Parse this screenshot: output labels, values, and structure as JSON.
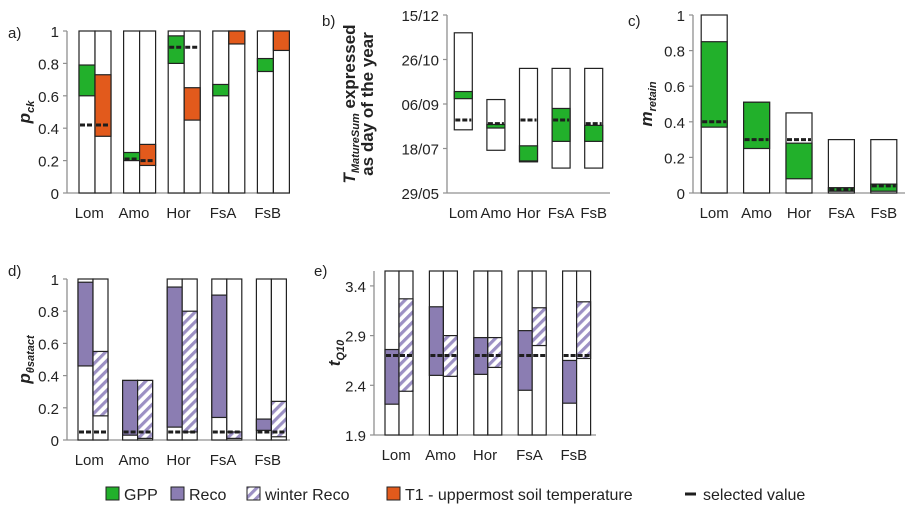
{
  "colors": {
    "gpp": "#22b02b",
    "reco": "#8b7db2",
    "winter_reco_stripe": "#9c90c4",
    "t1": "#e25a1c",
    "selected": "#1e1e1e",
    "axis": "#909090",
    "box": "#222222"
  },
  "legend": {
    "items": [
      {
        "key": "gpp",
        "label": "GPP"
      },
      {
        "key": "reco",
        "label": "Reco"
      },
      {
        "key": "winter_reco",
        "label": "winter Reco"
      },
      {
        "key": "t1",
        "label": "T1 - uppermost soil temperature"
      },
      {
        "key": "selected",
        "label": "selected value"
      }
    ]
  },
  "chart_data": [
    {
      "id": "a",
      "panel_label": "a)",
      "type": "bar",
      "ylabel_main": "p",
      "ylabel_sub": "ck",
      "ylim": [
        0,
        1
      ],
      "yticks": [
        {
          "v": 0,
          "label": "0"
        },
        {
          "v": 0.2,
          "label": "0.2"
        },
        {
          "v": 0.4,
          "label": "0.4"
        },
        {
          "v": 0.6,
          "label": "0.6"
        },
        {
          "v": 0.8,
          "label": "0.8"
        },
        {
          "v": 1,
          "label": "1"
        }
      ],
      "categories": [
        "Lom",
        "Amo",
        "Hor",
        "FsA",
        "FsB"
      ],
      "bars": [
        {
          "cat": "Lom",
          "kind": "gpp",
          "range": [
            0,
            1
          ],
          "band": [
            0.6,
            0.79
          ],
          "selected": 0.42
        },
        {
          "cat": "Lom",
          "kind": "t1",
          "range": [
            0,
            1
          ],
          "band": [
            0.35,
            0.73
          ],
          "selected": 0.42
        },
        {
          "cat": "Amo",
          "kind": "gpp",
          "range": [
            0,
            1
          ],
          "band": [
            0.2,
            0.25
          ],
          "selected": 0.21
        },
        {
          "cat": "Amo",
          "kind": "t1",
          "range": [
            0,
            1
          ],
          "band": [
            0.17,
            0.3
          ],
          "selected": 0.2
        },
        {
          "cat": "Hor",
          "kind": "gpp",
          "range": [
            0,
            1
          ],
          "band": [
            0.8,
            0.97
          ],
          "selected": 0.9
        },
        {
          "cat": "Hor",
          "kind": "t1",
          "range": [
            0,
            1
          ],
          "band": [
            0.45,
            0.65
          ],
          "selected": 0.9
        },
        {
          "cat": "FsA",
          "kind": "gpp",
          "range": [
            0,
            1
          ],
          "band": [
            0.6,
            0.67
          ],
          "selected": null
        },
        {
          "cat": "FsA",
          "kind": "t1",
          "range": [
            0,
            1
          ],
          "band": [
            0.92,
            1.0
          ],
          "selected": null
        },
        {
          "cat": "FsB",
          "kind": "gpp",
          "range": [
            0,
            1
          ],
          "band": [
            0.75,
            0.83
          ],
          "selected": null
        },
        {
          "cat": "FsB",
          "kind": "t1",
          "range": [
            0,
            1
          ],
          "band": [
            0.88,
            1.0
          ],
          "selected": null
        }
      ]
    },
    {
      "id": "b",
      "panel_label": "b)",
      "type": "bar",
      "ylabel_main": "T",
      "ylabel_sub": "MatureSum",
      "ylabel_rest": " expressed",
      "ylabel_line2": "as day of the year",
      "ylim": [
        149,
        349
      ],
      "yticks": [
        {
          "v": 149,
          "label": "29/05"
        },
        {
          "v": 199,
          "label": "18/07"
        },
        {
          "v": 249,
          "label": "06/09"
        },
        {
          "v": 299,
          "label": "26/10"
        },
        {
          "v": 349,
          "label": "15/12"
        }
      ],
      "categories": [
        "Lom",
        "Amo",
        "Hor",
        "FsA",
        "FsB"
      ],
      "bars": [
        {
          "cat": "Lom",
          "kind": "gpp",
          "range": [
            220,
            329
          ],
          "band": [
            255,
            263
          ],
          "selected": 231
        },
        {
          "cat": "Amo",
          "kind": "gpp",
          "range": [
            197,
            254
          ],
          "band": [
            222,
            226
          ],
          "selected": 227
        },
        {
          "cat": "Hor",
          "kind": "gpp",
          "range": [
            184,
            289
          ],
          "band": [
            185,
            202
          ],
          "selected": 231
        },
        {
          "cat": "FsA",
          "kind": "gpp",
          "range": [
            177,
            289
          ],
          "band": [
            207,
            244
          ],
          "selected": 231
        },
        {
          "cat": "FsB",
          "kind": "gpp",
          "range": [
            177,
            289
          ],
          "band": [
            207,
            225
          ],
          "selected": 227
        }
      ]
    },
    {
      "id": "c",
      "panel_label": "c)",
      "type": "bar",
      "ylabel_main": "m",
      "ylabel_sub": "retain",
      "ylim": [
        0,
        1
      ],
      "yticks": [
        {
          "v": 0,
          "label": "0"
        },
        {
          "v": 0.2,
          "label": "0.2"
        },
        {
          "v": 0.4,
          "label": "0.4"
        },
        {
          "v": 0.6,
          "label": "0.6"
        },
        {
          "v": 0.8,
          "label": "0.8"
        },
        {
          "v": 1,
          "label": "1"
        }
      ],
      "categories": [
        "Lom",
        "Amo",
        "Hor",
        "FsA",
        "FsB"
      ],
      "bars": [
        {
          "cat": "Lom",
          "kind": "gpp",
          "range": [
            0,
            1
          ],
          "band": [
            0.37,
            0.85
          ],
          "selected": 0.4
        },
        {
          "cat": "Amo",
          "kind": "gpp",
          "range": [
            0,
            0.51
          ],
          "band": [
            0.25,
            0.51
          ],
          "selected": 0.3
        },
        {
          "cat": "Hor",
          "kind": "gpp",
          "range": [
            0,
            0.45
          ],
          "band": [
            0.08,
            0.28
          ],
          "selected": 0.3
        },
        {
          "cat": "FsA",
          "kind": "gpp",
          "range": [
            0,
            0.3
          ],
          "band": [
            0.01,
            0.03
          ],
          "selected": 0.02
        },
        {
          "cat": "FsB",
          "kind": "gpp",
          "range": [
            0,
            0.3
          ],
          "band": [
            0.01,
            0.05
          ],
          "selected": 0.04
        }
      ]
    },
    {
      "id": "d",
      "panel_label": "d)",
      "type": "bar",
      "ylabel_main": "p",
      "ylabel_sub": "θsatact",
      "ylim": [
        0,
        1
      ],
      "yticks": [
        {
          "v": 0,
          "label": "0"
        },
        {
          "v": 0.2,
          "label": "0.2"
        },
        {
          "v": 0.4,
          "label": "0.4"
        },
        {
          "v": 0.6,
          "label": "0.6"
        },
        {
          "v": 0.8,
          "label": "0.8"
        },
        {
          "v": 1,
          "label": "1"
        }
      ],
      "categories": [
        "Lom",
        "Amo",
        "Hor",
        "FsA",
        "FsB"
      ],
      "bars": [
        {
          "cat": "Lom",
          "kind": "reco",
          "range": [
            0,
            1
          ],
          "band": [
            0.46,
            0.98
          ],
          "selected": 0.05
        },
        {
          "cat": "Lom",
          "kind": "winter",
          "range": [
            0,
            1
          ],
          "band": [
            0.15,
            0.55
          ],
          "selected": 0.05
        },
        {
          "cat": "Amo",
          "kind": "reco",
          "range": [
            0,
            0.37
          ],
          "band": [
            0.03,
            0.37
          ],
          "selected": 0.05
        },
        {
          "cat": "Amo",
          "kind": "winter",
          "range": [
            0,
            0.37
          ],
          "band": [
            0.01,
            0.37
          ],
          "selected": 0.05
        },
        {
          "cat": "Hor",
          "kind": "reco",
          "range": [
            0,
            1
          ],
          "band": [
            0.08,
            0.95
          ],
          "selected": 0.05
        },
        {
          "cat": "Hor",
          "kind": "winter",
          "range": [
            0,
            1
          ],
          "band": [
            0.05,
            0.8
          ],
          "selected": 0.05
        },
        {
          "cat": "FsA",
          "kind": "reco",
          "range": [
            0,
            1
          ],
          "band": [
            0.14,
            0.9
          ],
          "selected": 0.05
        },
        {
          "cat": "FsA",
          "kind": "winter",
          "range": [
            0,
            1
          ],
          "band": [
            0.01,
            0.05
          ],
          "selected": 0.05
        },
        {
          "cat": "FsB",
          "kind": "reco",
          "range": [
            0,
            1
          ],
          "band": [
            0.06,
            0.13
          ],
          "selected": 0.05
        },
        {
          "cat": "FsB",
          "kind": "winter",
          "range": [
            0,
            1
          ],
          "band": [
            0.02,
            0.24
          ],
          "selected": 0.05
        }
      ]
    },
    {
      "id": "e",
      "panel_label": "e)",
      "type": "bar",
      "ylabel_main": "t",
      "ylabel_sub": "Q10",
      "ylim": [
        1.9,
        3.55
      ],
      "yticks": [
        {
          "v": 1.9,
          "label": "1.9"
        },
        {
          "v": 2.4,
          "label": "2.4"
        },
        {
          "v": 2.9,
          "label": "2.9"
        },
        {
          "v": 3.4,
          "label": "3.4"
        }
      ],
      "categories": [
        "Lom",
        "Amo",
        "Hor",
        "FsA",
        "FsB"
      ],
      "bars": [
        {
          "cat": "Lom",
          "kind": "reco",
          "range": [
            1.9,
            3.55
          ],
          "band": [
            2.21,
            2.76
          ],
          "selected": 2.7
        },
        {
          "cat": "Lom",
          "kind": "winter",
          "range": [
            1.9,
            3.55
          ],
          "band": [
            2.34,
            3.27
          ],
          "selected": 2.7
        },
        {
          "cat": "Amo",
          "kind": "reco",
          "range": [
            1.9,
            3.55
          ],
          "band": [
            2.5,
            3.19
          ],
          "selected": 2.7
        },
        {
          "cat": "Amo",
          "kind": "winter",
          "range": [
            1.9,
            3.55
          ],
          "band": [
            2.49,
            2.9
          ],
          "selected": 2.7
        },
        {
          "cat": "Hor",
          "kind": "reco",
          "range": [
            1.9,
            3.55
          ],
          "band": [
            2.51,
            2.88
          ],
          "selected": 2.7
        },
        {
          "cat": "Hor",
          "kind": "winter",
          "range": [
            1.9,
            3.55
          ],
          "band": [
            2.58,
            2.88
          ],
          "selected": 2.7
        },
        {
          "cat": "FsA",
          "kind": "reco",
          "range": [
            1.9,
            3.55
          ],
          "band": [
            2.35,
            2.95
          ],
          "selected": 2.7
        },
        {
          "cat": "FsA",
          "kind": "winter",
          "range": [
            1.9,
            3.55
          ],
          "band": [
            2.8,
            3.18
          ],
          "selected": 2.7
        },
        {
          "cat": "FsB",
          "kind": "reco",
          "range": [
            1.9,
            3.55
          ],
          "band": [
            2.22,
            2.65
          ],
          "selected": 2.7
        },
        {
          "cat": "FsB",
          "kind": "winter",
          "range": [
            1.9,
            3.55
          ],
          "band": [
            2.67,
            3.24
          ],
          "selected": 2.7
        }
      ]
    }
  ]
}
